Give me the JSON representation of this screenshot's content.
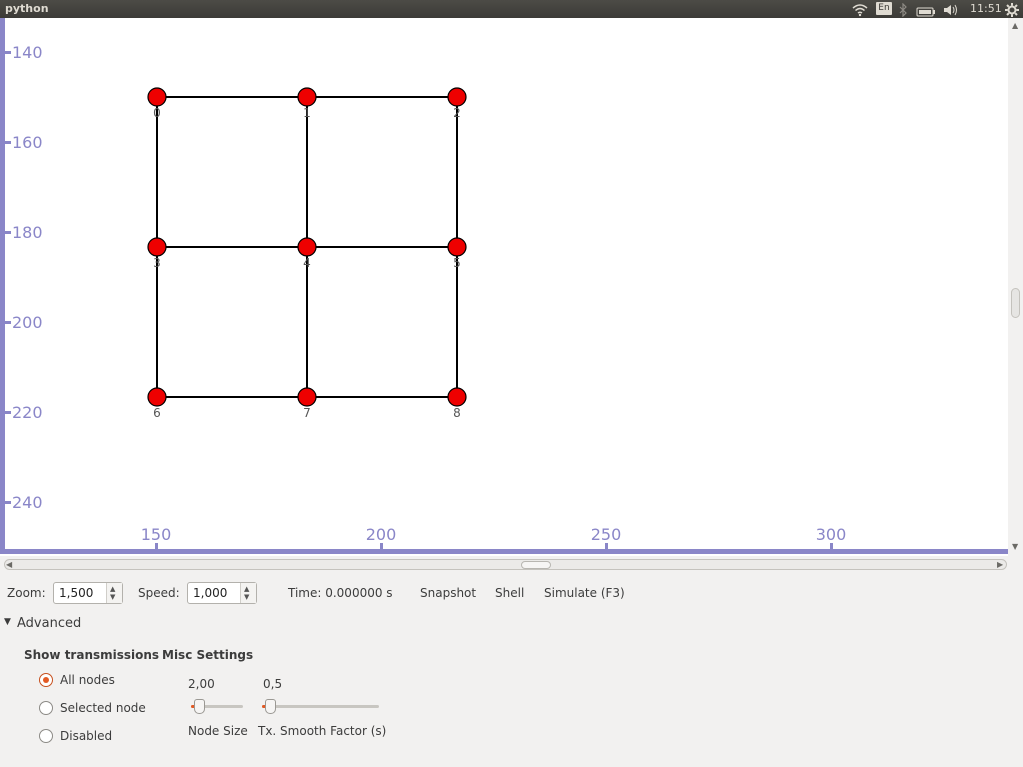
{
  "topbar": {
    "app_name": "python",
    "keyboard": "En",
    "clock": "11:51",
    "icons": [
      "wifi-icon",
      "keyboard-layout-icon",
      "bluetooth-icon",
      "battery-icon",
      "volume-icon",
      "settings-gear-icon"
    ]
  },
  "canvas": {
    "y_axis_ticks": [
      "140",
      "160",
      "180",
      "200",
      "220",
      "240"
    ],
    "x_axis_ticks": [
      "150",
      "200",
      "250",
      "300"
    ],
    "axis_color": "#8a86c8",
    "node_color": "#ee0000",
    "nodes": [
      "0",
      "1",
      "2",
      "3",
      "4",
      "5",
      "6",
      "7",
      "8"
    ]
  },
  "controls": {
    "zoom_label": "Zoom:",
    "zoom_value": "1,500",
    "speed_label": "Speed:",
    "speed_value": "1,000",
    "time_text": "Time: 0.000000 s",
    "snapshot": "Snapshot",
    "shell": "Shell",
    "simulate": "Simulate (F3)"
  },
  "advanced": {
    "label": "Advanced",
    "show_transmissions": {
      "title": "Show transmissions",
      "options": [
        "All nodes",
        "Selected node",
        "Disabled"
      ],
      "selected": "All nodes"
    },
    "misc": {
      "title": "Misc Settings",
      "node_size_value": "2,00",
      "node_size_label": "Node Size",
      "smooth_value": "0,5",
      "smooth_label": "Tx. Smooth Factor (s)"
    }
  }
}
